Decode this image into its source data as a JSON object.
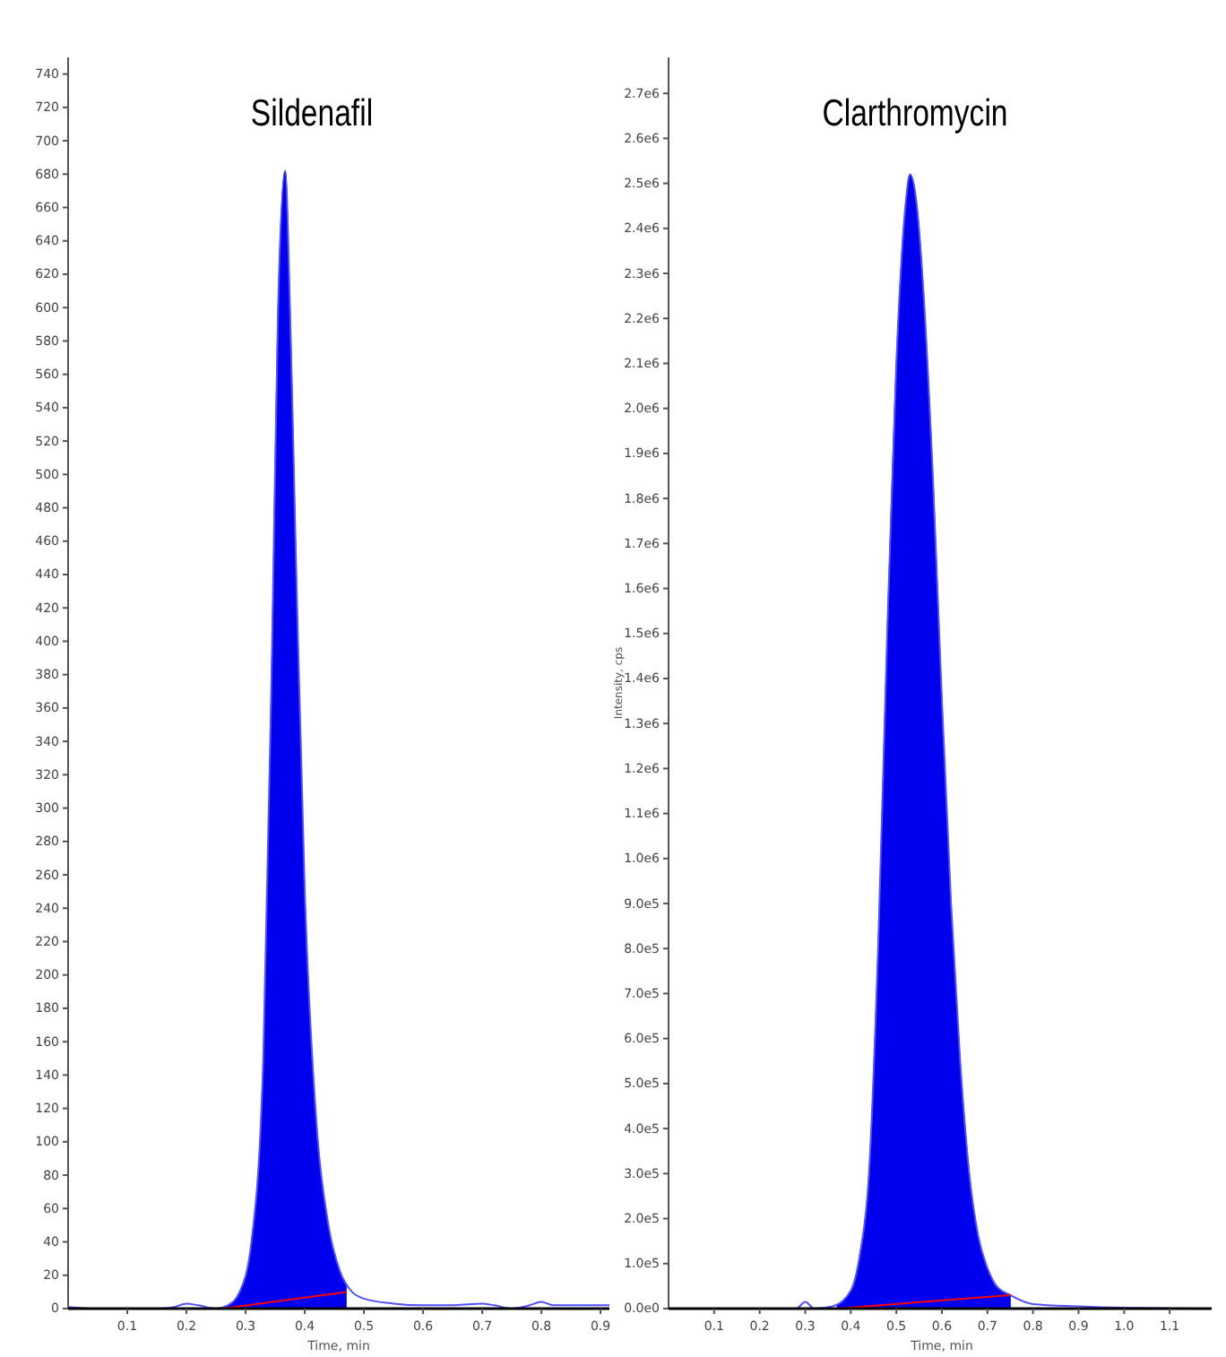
{
  "chart_data": [
    {
      "type": "line",
      "title": "Sildenafil",
      "xlabel": "Time, min",
      "xlim": [
        0,
        0.915
      ],
      "xticks": [
        0.1,
        0.2,
        0.3,
        0.4,
        0.5,
        0.6,
        0.7,
        0.8,
        0.9
      ],
      "ylim": [
        0,
        750
      ],
      "yticks": [
        0,
        20,
        40,
        60,
        80,
        100,
        120,
        140,
        160,
        180,
        200,
        220,
        240,
        260,
        280,
        300,
        320,
        340,
        360,
        380,
        400,
        420,
        440,
        460,
        480,
        500,
        520,
        540,
        560,
        580,
        600,
        620,
        640,
        660,
        680,
        700,
        720,
        740
      ],
      "series": [
        {
          "color": "#5050ff",
          "x": [
            0,
            0.05,
            0.1,
            0.15,
            0.18,
            0.2,
            0.22,
            0.25,
            0.27,
            0.29,
            0.31,
            0.33,
            0.345,
            0.355,
            0.367,
            0.375,
            0.385,
            0.4,
            0.42,
            0.44,
            0.46,
            0.48,
            0.5,
            0.55,
            0.6,
            0.65,
            0.7,
            0.72,
            0.75,
            0.78,
            0.8,
            0.82,
            0.85,
            0.915
          ],
          "values": [
            1,
            0,
            0,
            0,
            1,
            3,
            2,
            0,
            2,
            10,
            40,
            150,
            400,
            600,
            682,
            600,
            450,
            250,
            110,
            50,
            22,
            10,
            6,
            3,
            2,
            2,
            3,
            2,
            0,
            2,
            4,
            2,
            2,
            2
          ]
        },
        {
          "type": "area",
          "color": "#0000ee",
          "x": [
            0.26,
            0.27,
            0.29,
            0.31,
            0.33,
            0.345,
            0.355,
            0.367,
            0.375,
            0.385,
            0.4,
            0.42,
            0.44,
            0.46,
            0.47
          ],
          "values": [
            0,
            2,
            10,
            40,
            150,
            400,
            600,
            682,
            600,
            450,
            250,
            110,
            50,
            22,
            15
          ]
        },
        {
          "color": "#ff0000",
          "x": [
            0.26,
            0.47
          ],
          "values": [
            0,
            10
          ]
        }
      ]
    },
    {
      "type": "line",
      "title": "Clarthromycin",
      "xlabel": "Time, min",
      "ylabel": "Intensity, cps",
      "xlim": [
        0,
        1.2
      ],
      "xticks": [
        0.1,
        0.2,
        0.3,
        0.4,
        0.5,
        0.6,
        0.7,
        0.8,
        0.9,
        {
          "value": 1,
          "label": "1.0"
        },
        1.1
      ],
      "ylim": [
        0,
        2780000.0
      ],
      "yticks": [
        {
          "value": 0,
          "label": "0.0e0"
        },
        {
          "value": 100000,
          "label": "1.0e5"
        },
        {
          "value": 200000,
          "label": "2.0e5"
        },
        {
          "value": 300000,
          "label": "3.0e5"
        },
        {
          "value": 400000,
          "label": "4.0e5"
        },
        {
          "value": 500000,
          "label": "5.0e5"
        },
        {
          "value": 600000,
          "label": "6.0e5"
        },
        {
          "value": 700000,
          "label": "7.0e5"
        },
        {
          "value": 800000,
          "label": "8.0e5"
        },
        {
          "value": 900000,
          "label": "9.0e5"
        },
        {
          "value": 1000000,
          "label": "1.0e6"
        },
        {
          "value": 1100000,
          "label": "1.1e6"
        },
        {
          "value": 1200000,
          "label": "1.2e6"
        },
        {
          "value": 1300000,
          "label": "1.3e6"
        },
        {
          "value": 1400000,
          "label": "1.4e6"
        },
        {
          "value": 1500000,
          "label": "1.5e6"
        },
        {
          "value": 1600000,
          "label": "1.6e6"
        },
        {
          "value": 1700000,
          "label": "1.7e6"
        },
        {
          "value": 1800000,
          "label": "1.8e6"
        },
        {
          "value": 1900000,
          "label": "1.9e6"
        },
        {
          "value": 2000000,
          "label": "2.0e6"
        },
        {
          "value": 2100000,
          "label": "2.1e6"
        },
        {
          "value": 2200000,
          "label": "2.2e6"
        },
        {
          "value": 2300000,
          "label": "2.3e6"
        },
        {
          "value": 2400000,
          "label": "2.4e6"
        },
        {
          "value": 2500000,
          "label": "2.5e6"
        },
        {
          "value": 2600000,
          "label": "2.6e6"
        },
        {
          "value": 2700000,
          "label": "2.7e6"
        }
      ],
      "series": [
        {
          "color": "#5050ff",
          "x": [
            0,
            0.2,
            0.28,
            0.3,
            0.32,
            0.36,
            0.4,
            0.42,
            0.44,
            0.46,
            0.48,
            0.5,
            0.52,
            0.53,
            0.545,
            0.56,
            0.58,
            0.6,
            0.62,
            0.64,
            0.66,
            0.68,
            0.7,
            0.72,
            0.75,
            0.8,
            0.9,
            1.0,
            1.2
          ],
          "values": [
            0,
            0,
            0,
            15000,
            0,
            5000,
            40000,
            120000,
            300000,
            800000,
            1500000,
            2100000,
            2450000,
            2520000,
            2450000,
            2250000,
            1850000,
            1350000,
            900000,
            550000,
            300000,
            160000,
            90000,
            50000,
            30000,
            10000,
            5000,
            2000,
            0
          ]
        },
        {
          "type": "area",
          "color": "#0000ee",
          "x": [
            0.37,
            0.4,
            0.42,
            0.44,
            0.46,
            0.48,
            0.5,
            0.52,
            0.53,
            0.545,
            0.56,
            0.58,
            0.6,
            0.62,
            0.64,
            0.66,
            0.68,
            0.7,
            0.72,
            0.75
          ],
          "values": [
            8000,
            40000,
            120000,
            300000,
            800000,
            1500000,
            2100000,
            2450000,
            2520000,
            2450000,
            2250000,
            1850000,
            1350000,
            900000,
            550000,
            300000,
            160000,
            90000,
            50000,
            30000
          ]
        },
        {
          "color": "#ff0000",
          "x": [
            0.37,
            0.75
          ],
          "values": [
            0,
            30000
          ]
        }
      ]
    }
  ]
}
